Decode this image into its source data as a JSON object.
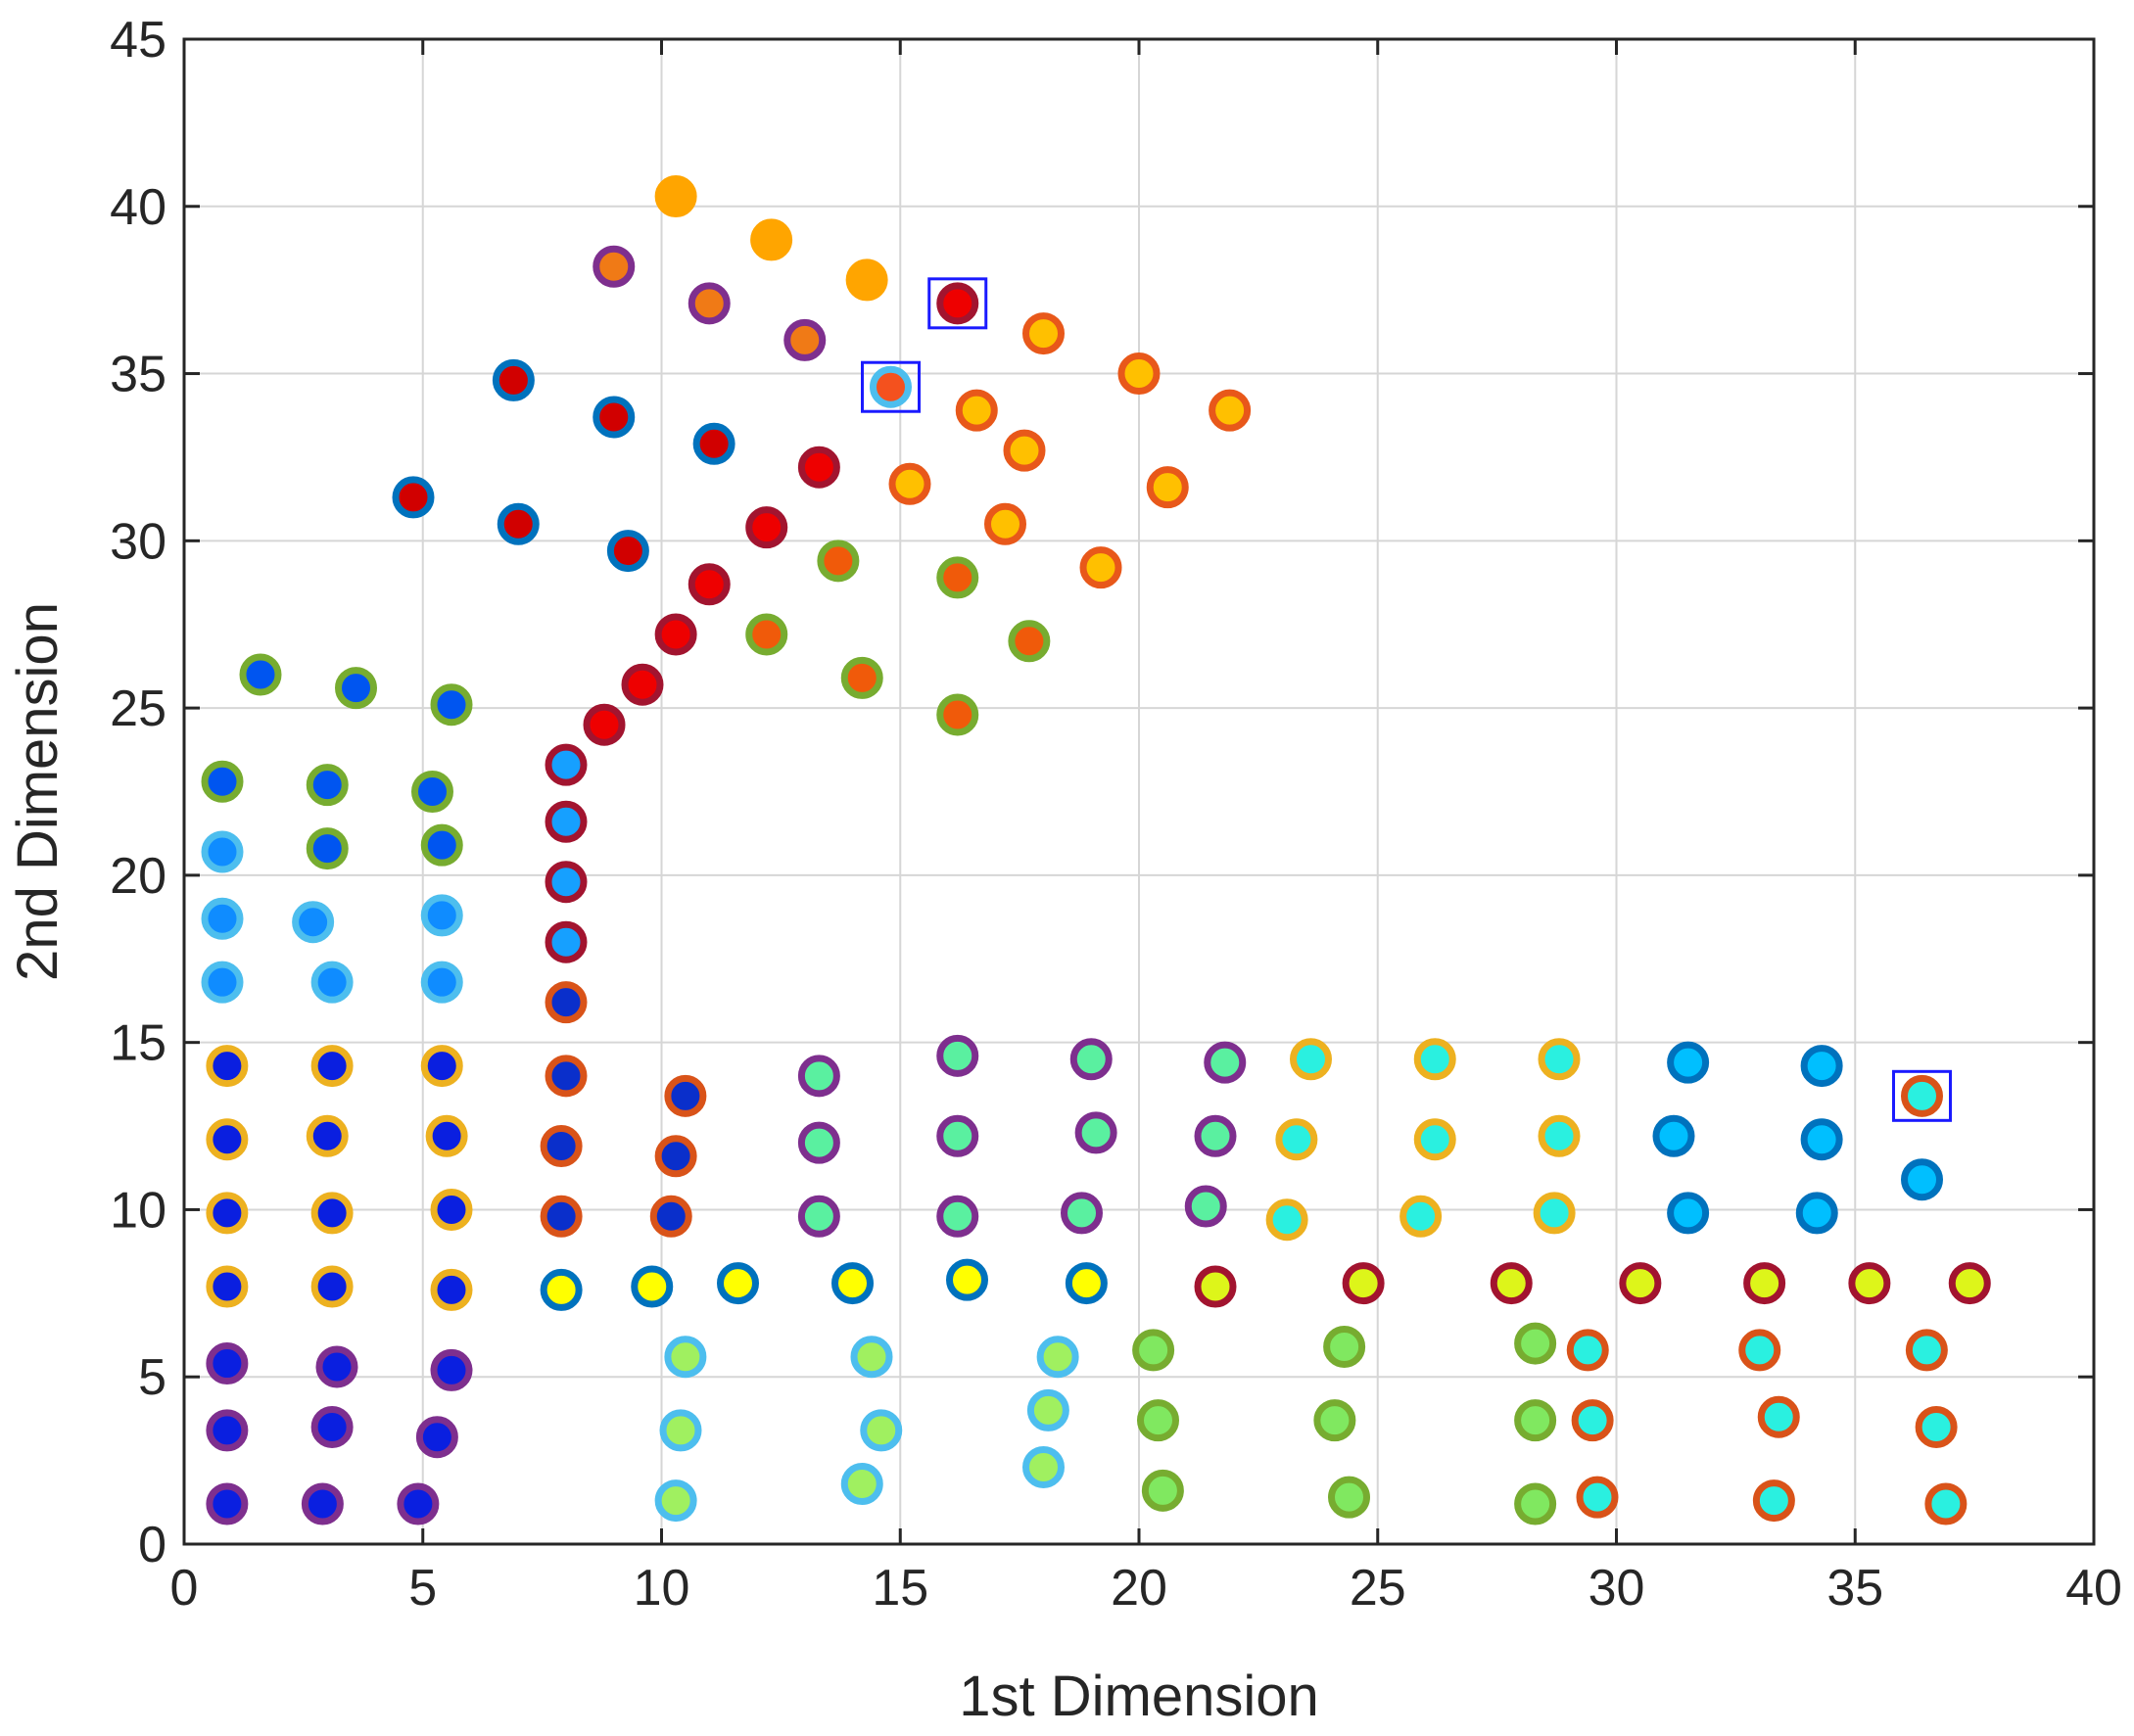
{
  "chart_data": {
    "type": "scatter",
    "title": "",
    "xlabel": "1st Dimension",
    "ylabel": "2nd Dimension",
    "xlim": [
      0,
      40
    ],
    "ylim": [
      0,
      45
    ],
    "xticks": [
      0,
      5,
      10,
      15,
      20,
      25,
      30,
      35,
      40
    ],
    "yticks": [
      0,
      5,
      10,
      15,
      20,
      25,
      30,
      35,
      40,
      45
    ],
    "grid": true,
    "legend": "none",
    "highlighted": [
      {
        "x": 16.2,
        "y": 37.1,
        "label": "highlight-upper"
      },
      {
        "x": 14.8,
        "y": 34.6,
        "label": "highlight-middle"
      },
      {
        "x": 36.4,
        "y": 13.4,
        "label": "highlight-right"
      }
    ],
    "series": [
      {
        "name": "orange solid",
        "fill": "#FFA500",
        "edge": "#FFA500",
        "points": [
          [
            10.3,
            40.3
          ],
          [
            12.3,
            39.0
          ],
          [
            14.3,
            37.8
          ]
        ]
      },
      {
        "name": "orange / purple ring",
        "fill": "#F07A16",
        "edge": "#7E2F8E",
        "points": [
          [
            9.0,
            38.2
          ],
          [
            11.0,
            37.1
          ],
          [
            13.0,
            36.0
          ]
        ]
      },
      {
        "name": "red / dark red ring",
        "fill": "#EE0000",
        "edge": "#A2142F",
        "points": [
          [
            16.2,
            37.1
          ],
          [
            13.3,
            32.2
          ],
          [
            12.2,
            30.4
          ],
          [
            11.0,
            28.7
          ],
          [
            10.3,
            27.2
          ],
          [
            9.6,
            25.7
          ],
          [
            8.8,
            24.5
          ]
        ]
      },
      {
        "name": "orange-red / cyan ring",
        "fill": "#F4511E",
        "edge": "#4DBEEE",
        "points": [
          [
            14.8,
            34.6
          ]
        ]
      },
      {
        "name": "yellow-orange / orange ring",
        "fill": "#FFC000",
        "edge": "#E8581A",
        "points": [
          [
            18.0,
            36.2
          ],
          [
            20.0,
            35.0
          ],
          [
            21.9,
            33.9
          ],
          [
            16.6,
            33.9
          ],
          [
            17.6,
            32.7
          ],
          [
            20.6,
            31.6
          ],
          [
            15.2,
            31.7
          ],
          [
            17.2,
            30.5
          ],
          [
            19.2,
            29.2
          ]
        ]
      },
      {
        "name": "red / blue ring",
        "fill": "#D10000",
        "edge": "#0072BD",
        "points": [
          [
            6.9,
            34.8
          ],
          [
            9.0,
            33.7
          ],
          [
            11.1,
            32.9
          ],
          [
            4.8,
            31.3
          ],
          [
            7.0,
            30.5
          ],
          [
            9.3,
            29.7
          ]
        ]
      },
      {
        "name": "orange-red / green ring",
        "fill": "#F05A0A",
        "edge": "#77AC30",
        "points": [
          [
            13.7,
            29.4
          ],
          [
            16.2,
            28.9
          ],
          [
            12.2,
            27.2
          ],
          [
            17.7,
            27.0
          ],
          [
            14.2,
            25.9
          ],
          [
            16.2,
            24.8
          ]
        ]
      },
      {
        "name": "blue / green ring",
        "fill": "#0055F0",
        "edge": "#77AC30",
        "points": [
          [
            1.6,
            26.0
          ],
          [
            3.6,
            25.6
          ],
          [
            5.6,
            25.1
          ],
          [
            0.8,
            22.8
          ],
          [
            3.0,
            22.7
          ],
          [
            5.2,
            22.5
          ],
          [
            3.0,
            20.8
          ],
          [
            5.4,
            20.9
          ]
        ]
      },
      {
        "name": "light blue / dark red ring",
        "fill": "#16A0FF",
        "edge": "#A2142F",
        "points": [
          [
            8.0,
            23.3
          ],
          [
            8.0,
            21.6
          ],
          [
            8.0,
            19.8
          ],
          [
            8.0,
            18.0
          ]
        ]
      },
      {
        "name": "dark blue / red ring",
        "fill": "#0A2FCB",
        "edge": "#D95319",
        "points": [
          [
            8.0,
            16.2
          ],
          [
            8.0,
            14.0
          ],
          [
            7.9,
            11.9
          ],
          [
            7.9,
            9.8
          ],
          [
            10.5,
            13.4
          ],
          [
            10.3,
            11.6
          ],
          [
            10.2,
            9.8
          ]
        ]
      },
      {
        "name": "light blue / sky ring",
        "fill": "#0F8CFF",
        "edge": "#4DBEEE",
        "points": [
          [
            0.8,
            20.7
          ],
          [
            0.8,
            18.7
          ],
          [
            2.7,
            18.6
          ],
          [
            5.4,
            18.8
          ],
          [
            0.8,
            16.8
          ],
          [
            3.1,
            16.8
          ],
          [
            5.4,
            16.8
          ]
        ]
      },
      {
        "name": "blue / orange ring",
        "fill": "#0A1FE0",
        "edge": "#EDB120",
        "points": [
          [
            0.9,
            14.3
          ],
          [
            3.1,
            14.3
          ],
          [
            5.4,
            14.3
          ],
          [
            0.9,
            12.1
          ],
          [
            3.0,
            12.2
          ],
          [
            5.5,
            12.2
          ],
          [
            0.9,
            9.9
          ],
          [
            3.1,
            9.9
          ],
          [
            5.6,
            10.0
          ],
          [
            0.9,
            7.7
          ],
          [
            3.1,
            7.7
          ],
          [
            5.6,
            7.6
          ]
        ]
      },
      {
        "name": "blue / purple ring",
        "fill": "#0A1FE0",
        "edge": "#7E2F8E",
        "points": [
          [
            0.9,
            5.4
          ],
          [
            3.2,
            5.3
          ],
          [
            5.6,
            5.2
          ],
          [
            0.9,
            3.4
          ],
          [
            3.1,
            3.5
          ],
          [
            5.3,
            3.2
          ],
          [
            0.9,
            1.2
          ],
          [
            2.9,
            1.2
          ],
          [
            4.9,
            1.2
          ]
        ]
      },
      {
        "name": "mint / purple ring",
        "fill": "#5AF0A0",
        "edge": "#7E2F8E",
        "points": [
          [
            13.3,
            14.0
          ],
          [
            16.2,
            14.6
          ],
          [
            19.0,
            14.5
          ],
          [
            21.8,
            14.4
          ],
          [
            13.3,
            12.0
          ],
          [
            16.2,
            12.2
          ],
          [
            19.1,
            12.3
          ],
          [
            21.6,
            12.2
          ],
          [
            13.3,
            9.8
          ],
          [
            16.2,
            9.8
          ],
          [
            18.8,
            9.9
          ],
          [
            21.4,
            10.1
          ]
        ]
      },
      {
        "name": "cyan / orange ring",
        "fill": "#2AF0E0",
        "edge": "#EDB120",
        "points": [
          [
            23.6,
            14.5
          ],
          [
            26.2,
            14.5
          ],
          [
            28.8,
            14.5
          ],
          [
            23.3,
            12.1
          ],
          [
            26.2,
            12.1
          ],
          [
            28.8,
            12.2
          ],
          [
            23.1,
            9.7
          ],
          [
            25.9,
            9.8
          ],
          [
            28.7,
            9.9
          ]
        ]
      },
      {
        "name": "sky blue / blue ring",
        "fill": "#00BFFF",
        "edge": "#0072BD",
        "points": [
          [
            31.5,
            14.4
          ],
          [
            34.3,
            14.3
          ],
          [
            31.2,
            12.2
          ],
          [
            34.3,
            12.1
          ],
          [
            31.5,
            9.9
          ],
          [
            34.2,
            9.9
          ],
          [
            36.4,
            10.9
          ]
        ]
      },
      {
        "name": "cyan / red-orange ring",
        "fill": "#2AF0E0",
        "edge": "#D95319",
        "points": [
          [
            36.4,
            13.4
          ],
          [
            29.4,
            5.8
          ],
          [
            33.0,
            5.8
          ],
          [
            36.5,
            5.8
          ],
          [
            29.5,
            3.7
          ],
          [
            33.4,
            3.8
          ],
          [
            36.7,
            3.5
          ],
          [
            29.6,
            1.4
          ],
          [
            33.3,
            1.3
          ],
          [
            36.9,
            1.2
          ]
        ]
      },
      {
        "name": "yellow / blue ring",
        "fill": "#FFFF00",
        "edge": "#0072BD",
        "points": [
          [
            7.9,
            7.6
          ],
          [
            9.8,
            7.7
          ],
          [
            11.6,
            7.8
          ],
          [
            14.0,
            7.8
          ],
          [
            16.4,
            7.9
          ],
          [
            18.9,
            7.8
          ]
        ]
      },
      {
        "name": "yellow-green / dark red ring",
        "fill": "#DDF51A",
        "edge": "#A2142F",
        "points": [
          [
            21.6,
            7.7
          ],
          [
            24.7,
            7.8
          ],
          [
            27.8,
            7.8
          ],
          [
            30.5,
            7.8
          ],
          [
            33.1,
            7.8
          ],
          [
            35.3,
            7.8
          ],
          [
            37.4,
            7.8
          ]
        ]
      },
      {
        "name": "light green / sky ring",
        "fill": "#A0F060",
        "edge": "#4DBEEE",
        "points": [
          [
            10.5,
            5.6
          ],
          [
            14.4,
            5.6
          ],
          [
            18.3,
            5.6
          ],
          [
            10.4,
            3.4
          ],
          [
            14.6,
            3.4
          ],
          [
            18.1,
            4.0
          ],
          [
            10.3,
            1.3
          ],
          [
            14.2,
            1.8
          ],
          [
            18.0,
            2.3
          ]
        ]
      },
      {
        "name": "green / green ring",
        "fill": "#80E860",
        "edge": "#77AC30",
        "points": [
          [
            20.3,
            5.8
          ],
          [
            24.3,
            5.9
          ],
          [
            28.3,
            6.0
          ],
          [
            20.4,
            3.7
          ],
          [
            24.1,
            3.7
          ],
          [
            28.3,
            3.7
          ],
          [
            20.5,
            1.6
          ],
          [
            24.4,
            1.4
          ],
          [
            28.3,
            1.2
          ]
        ]
      }
    ]
  }
}
